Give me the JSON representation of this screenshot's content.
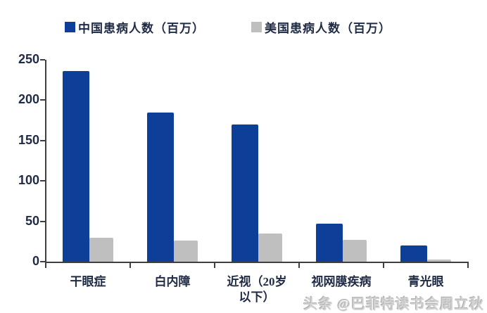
{
  "legend": {
    "items": [
      {
        "label": "中国患病人数（百万）",
        "color": "#0d3f99"
      },
      {
        "label": "美国患病人数（百万）",
        "color": "#bfbfbf"
      }
    ]
  },
  "watermark": {
    "text": "头条 @巴菲特读书会周立秋"
  },
  "chart_data": {
    "type": "bar",
    "title": "",
    "xlabel": "",
    "ylabel": "",
    "categories": [
      "干眼症",
      "白内障",
      "近视（20岁\n以下）",
      "视网膜疾病",
      "青光眼"
    ],
    "series": [
      {
        "name": "中国患病人数（百万）",
        "color": "#0d3f99",
        "values": [
          236,
          185,
          170,
          47,
          20
        ]
      },
      {
        "name": "美国患病人数（百万）",
        "color": "#bfbfbf",
        "values": [
          30,
          26,
          35,
          27,
          3
        ]
      }
    ],
    "ylim": [
      0,
      250
    ],
    "yticks": [
      0,
      50,
      100,
      150,
      200,
      250
    ],
    "grid": false,
    "legend_position": "top"
  }
}
